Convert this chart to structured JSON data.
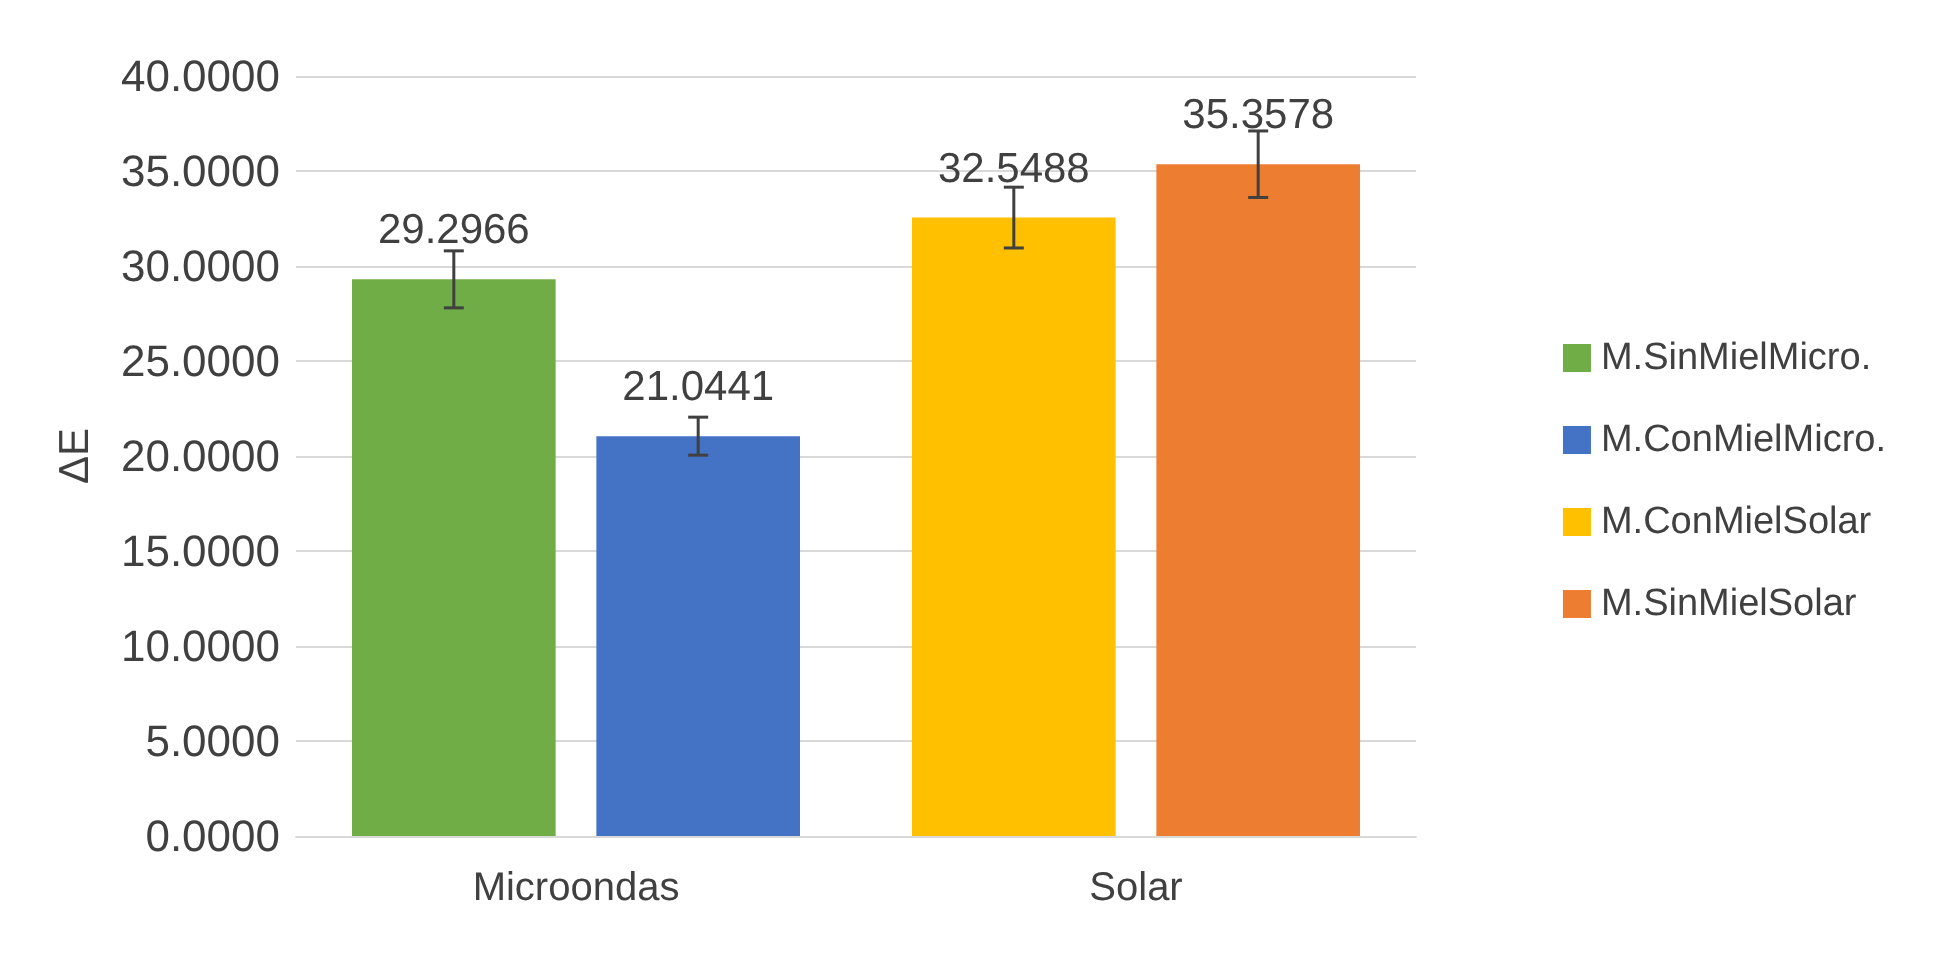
{
  "chart_data": {
    "type": "bar",
    "ylabel": "ΔE",
    "categories": [
      "Microondas",
      "Solar"
    ],
    "series": [
      {
        "name": "M.SinMielMicro.",
        "color": "#70ad47",
        "values": [
          29.2966,
          null
        ],
        "errors": [
          1.5,
          null
        ]
      },
      {
        "name": "M.ConMielMicro.",
        "color": "#4472c4",
        "values": [
          21.0441,
          null
        ],
        "errors": [
          1.0,
          null
        ]
      },
      {
        "name": "M.ConMielSolar",
        "color": "#ffc000",
        "values": [
          null,
          32.5488
        ],
        "errors": [
          null,
          1.6
        ]
      },
      {
        "name": "M.SinMielSolar",
        "color": "#ed7d31",
        "values": [
          null,
          35.3578
        ],
        "errors": [
          null,
          1.75
        ]
      }
    ],
    "ylim": [
      0,
      40
    ],
    "yticks": [
      {
        "value": 0,
        "label": "0.0000"
      },
      {
        "value": 5,
        "label": "5.0000"
      },
      {
        "value": 10,
        "label": "10.0000"
      },
      {
        "value": 15,
        "label": "15.0000"
      },
      {
        "value": 20,
        "label": "20.0000"
      },
      {
        "value": 25,
        "label": "25.0000"
      },
      {
        "value": 30,
        "label": "30.0000"
      },
      {
        "value": 35,
        "label": "35.0000"
      },
      {
        "value": 40,
        "label": "40.0000"
      }
    ],
    "grid": "y",
    "legend": "right",
    "data_labels": true
  }
}
